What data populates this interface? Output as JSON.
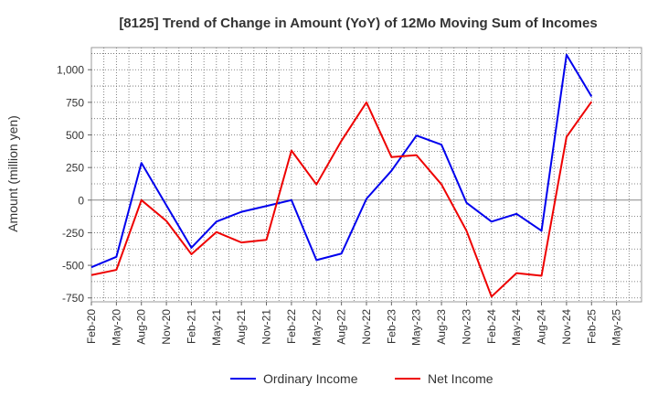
{
  "chart_data": {
    "type": "line",
    "title": "[8125]  Trend of Change in Amount (YoY) of 12Mo Moving Sum of Incomes",
    "xlabel": "",
    "ylabel": "Amount (million yen)",
    "ylim": [
      -780,
      1170
    ],
    "yticks": [
      -750,
      -500,
      -250,
      0,
      250,
      500,
      750,
      1000
    ],
    "ytick_labels": [
      "-750",
      "-500",
      "-250",
      "0",
      "250",
      "500",
      "750",
      "1,000"
    ],
    "categories": [
      "Feb-20",
      "May-20",
      "Aug-20",
      "Nov-20",
      "Feb-21",
      "May-21",
      "Aug-21",
      "Nov-21",
      "Feb-22",
      "May-22",
      "Aug-22",
      "Nov-22",
      "Feb-23",
      "May-23",
      "Aug-23",
      "Nov-23",
      "Feb-24",
      "May-24",
      "Aug-24",
      "Nov-24",
      "Feb-25",
      "May-25"
    ],
    "grid": true,
    "legend_position": "bottom",
    "series": [
      {
        "name": "Ordinary Income",
        "color": "#0000ee",
        "values": [
          -515,
          -435,
          285,
          -40,
          -365,
          -165,
          -90,
          -45,
          0,
          -460,
          -410,
          10,
          225,
          495,
          425,
          -20,
          -165,
          -105,
          -235,
          1115,
          795,
          null
        ]
      },
      {
        "name": "Net Income",
        "color": "#ee0000",
        "values": [
          -575,
          -535,
          0,
          -160,
          -415,
          -245,
          -325,
          -305,
          380,
          120,
          455,
          750,
          330,
          345,
          120,
          -235,
          -740,
          -560,
          -580,
          485,
          755,
          null
        ]
      }
    ]
  }
}
